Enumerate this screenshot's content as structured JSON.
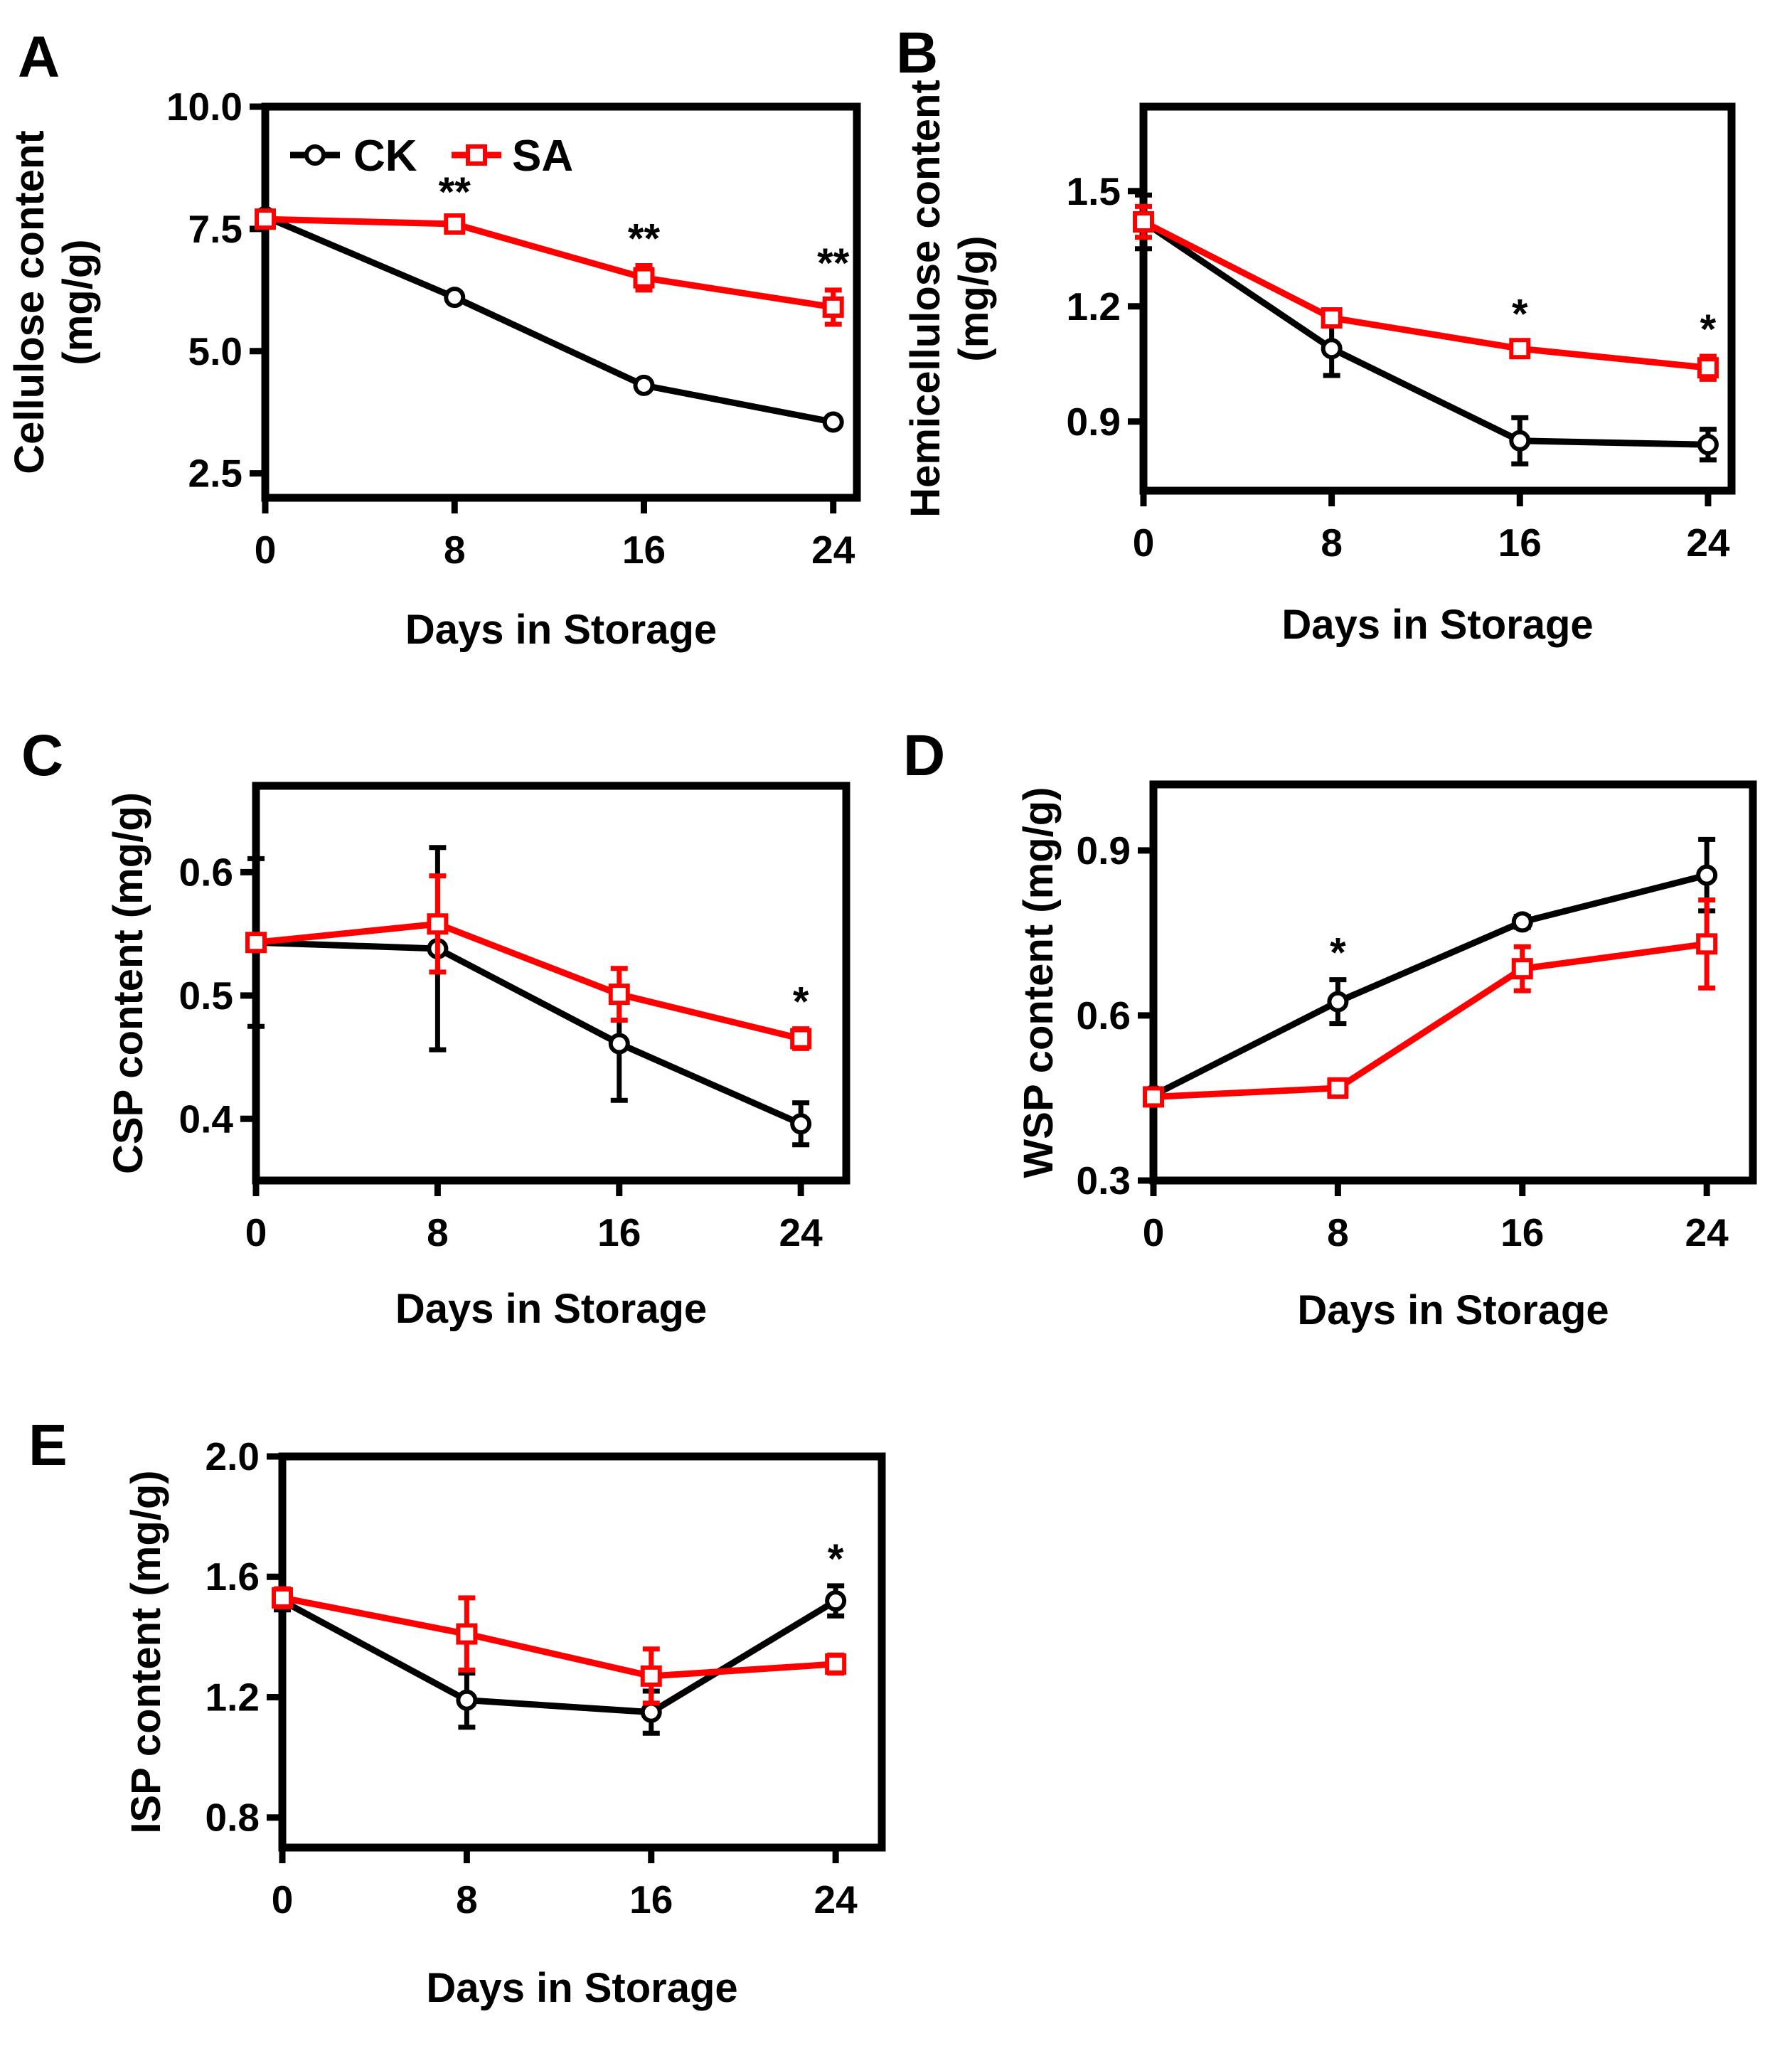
{
  "figure": {
    "colors": {
      "CK": "#000000",
      "SA": "#ff0000"
    },
    "legend": {
      "labels": [
        "CK",
        "SA"
      ],
      "markers": [
        "circle",
        "square"
      ]
    }
  },
  "chart_data": [
    {
      "panel": "A",
      "type": "line",
      "title": "",
      "xlabel": "Days in Storage",
      "ylabel": "Cellulose content\n(mg/g)",
      "x": [
        0,
        8,
        16,
        24
      ],
      "xlim": [
        0,
        25
      ],
      "ylim": [
        2.0,
        10.0
      ],
      "yticks": [
        "2.5",
        "5.0",
        "7.5",
        "10.0"
      ],
      "xticks": [
        "0",
        "8",
        "16",
        "24"
      ],
      "legend": "top-left",
      "series": [
        {
          "name": "CK",
          "values": [
            7.75,
            6.1,
            4.3,
            3.55
          ],
          "errors": [
            0.05,
            0.05,
            0.05,
            0.05
          ]
        },
        {
          "name": "SA",
          "values": [
            7.7,
            7.6,
            6.5,
            5.9
          ],
          "errors": [
            0.05,
            0.1,
            0.25,
            0.35
          ]
        }
      ],
      "annotations": [
        {
          "x": 8,
          "text": "**"
        },
        {
          "x": 16,
          "text": "**"
        },
        {
          "x": 24,
          "text": "**"
        }
      ]
    },
    {
      "panel": "B",
      "type": "line",
      "title": "",
      "xlabel": "Days in Storage",
      "ylabel": "Hemicellulose content\n(mg/g)",
      "x": [
        0,
        8,
        16,
        24
      ],
      "xlim": [
        0,
        25
      ],
      "ylim": [
        0.72,
        1.72
      ],
      "yticks": [
        "0.9",
        "1.2",
        "1.5"
      ],
      "xticks": [
        "0",
        "8",
        "16",
        "24"
      ],
      "series": [
        {
          "name": "CK",
          "values": [
            1.42,
            1.09,
            0.85,
            0.84
          ],
          "errors": [
            0.07,
            0.07,
            0.06,
            0.04
          ]
        },
        {
          "name": "SA",
          "values": [
            1.42,
            1.17,
            1.09,
            1.04
          ],
          "errors": [
            0.04,
            0.02,
            0.02,
            0.03
          ]
        }
      ],
      "annotations": [
        {
          "x": 16,
          "text": "*"
        },
        {
          "x": 24,
          "text": "*"
        }
      ]
    },
    {
      "panel": "C",
      "type": "line",
      "title": "",
      "xlabel": "Days in Storage",
      "ylabel": "CSP content (mg/g)",
      "x": [
        0,
        8,
        16,
        24
      ],
      "xlim": [
        0,
        26
      ],
      "ylim": [
        0.35,
        0.67
      ],
      "yticks": [
        "0.4",
        "0.5",
        "0.6"
      ],
      "xticks": [
        "0",
        "8",
        "16",
        "24"
      ],
      "series": [
        {
          "name": "CK",
          "values": [
            0.543,
            0.538,
            0.461,
            0.396
          ],
          "errors": [
            0.068,
            0.082,
            0.046,
            0.017
          ]
        },
        {
          "name": "SA",
          "values": [
            0.543,
            0.558,
            0.501,
            0.465
          ],
          "errors": [
            0.004,
            0.039,
            0.021,
            0.008
          ]
        }
      ],
      "annotations": [
        {
          "x": 24,
          "text": "*"
        }
      ]
    },
    {
      "panel": "D",
      "type": "line",
      "title": "",
      "xlabel": "Days in Storage",
      "ylabel": "WSP content (mg/g)",
      "x": [
        0,
        8,
        16,
        24
      ],
      "xlim": [
        0,
        26
      ],
      "ylim": [
        0.3,
        1.02
      ],
      "yticks": [
        "0.3",
        "0.6",
        "0.9"
      ],
      "xticks": [
        "0",
        "8",
        "16",
        "24"
      ],
      "series": [
        {
          "name": "CK",
          "values": [
            0.455,
            0.625,
            0.77,
            0.855
          ],
          "errors": [
            0.01,
            0.04,
            0.01,
            0.065
          ]
        },
        {
          "name": "SA",
          "values": [
            0.452,
            0.468,
            0.685,
            0.73
          ],
          "errors": [
            0.01,
            0.015,
            0.04,
            0.08
          ]
        }
      ],
      "annotations": [
        {
          "x": 8,
          "text": "*"
        }
      ]
    },
    {
      "panel": "E",
      "type": "line",
      "title": "",
      "xlabel": "Days in Storage",
      "ylabel": "ISP content (mg/g)",
      "x": [
        0,
        8,
        16,
        24
      ],
      "xlim": [
        0,
        26
      ],
      "ylim": [
        0.7,
        2.0
      ],
      "yticks": [
        "0.8",
        "1.2",
        "1.6",
        "2.0"
      ],
      "xticks": [
        "0",
        "8",
        "16",
        "24"
      ],
      "series": [
        {
          "name": "CK",
          "values": [
            1.52,
            1.19,
            1.15,
            1.52
          ],
          "errors": [
            0.03,
            0.09,
            0.07,
            0.05
          ]
        },
        {
          "name": "SA",
          "values": [
            1.53,
            1.41,
            1.27,
            1.31
          ],
          "errors": [
            0.03,
            0.12,
            0.09,
            0.03
          ]
        }
      ],
      "annotations": [
        {
          "x": 24,
          "text": "*"
        }
      ]
    }
  ]
}
